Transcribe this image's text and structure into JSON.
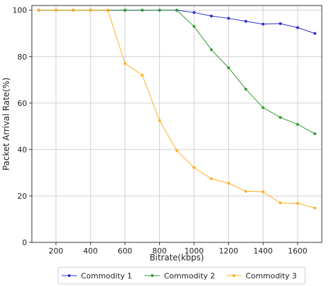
{
  "chart_data": {
    "type": "line",
    "xlabel": "Bitrate(kbps)",
    "ylabel": "Packet Arrival Rate(%)",
    "xlim": [
      60,
      1740
    ],
    "ylim": [
      0,
      102
    ],
    "x_ticks": [
      200,
      400,
      600,
      800,
      1000,
      1200,
      1400,
      1600
    ],
    "y_ticks": [
      0,
      20,
      40,
      60,
      80,
      100
    ],
    "grid": true,
    "legend_position": "bottom-center",
    "x": [
      100,
      200,
      300,
      400,
      500,
      600,
      700,
      800,
      900,
      1000,
      1100,
      1200,
      1300,
      1400,
      1500,
      1600,
      1700
    ],
    "series": [
      {
        "name": "Commodity 1",
        "color": "#2a2acc",
        "values": [
          100,
          100,
          100,
          100,
          100,
          100,
          100,
          100,
          100,
          99,
          97.5,
          96.5,
          95.2,
          94,
          94.2,
          92.5,
          90
        ]
      },
      {
        "name": "Commodity 2",
        "color": "#2a9a2a",
        "values": [
          100,
          100,
          100,
          100,
          100,
          100,
          100,
          100,
          100,
          93,
          83,
          75.2,
          66,
          58,
          53.8,
          50.8,
          46.8
        ]
      },
      {
        "name": "Commodity 3",
        "color": "#ffb020",
        "values": [
          100,
          100,
          100,
          100,
          100,
          77,
          72,
          52.5,
          39.5,
          32.2,
          27.4,
          25.5,
          22,
          21.8,
          17,
          16.8,
          14.8
        ]
      }
    ]
  }
}
